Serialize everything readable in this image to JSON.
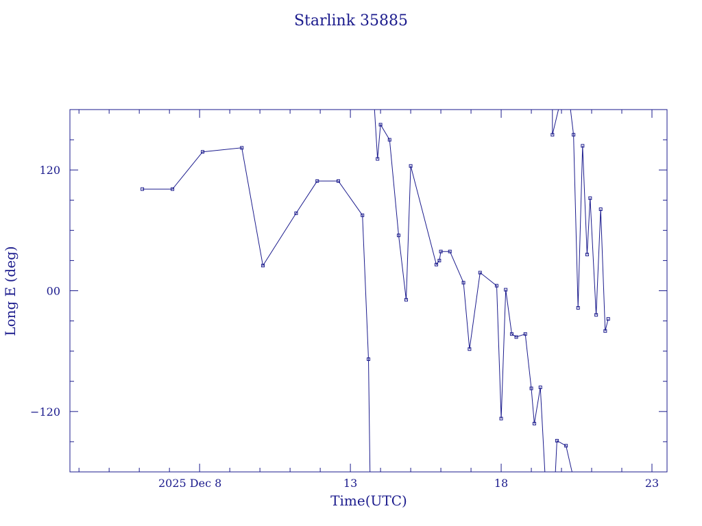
{
  "chart_data": {
    "type": "line",
    "title": "Starlink 35885",
    "xlabel": "Time(UTC)",
    "ylabel": "Long E (deg)",
    "xlim": [
      3.7,
      23.5
    ],
    "ylim": [
      -180,
      180
    ],
    "x_tick_labels": [
      {
        "x": 8,
        "label": "2025 Dec  8"
      },
      {
        "x": 13,
        "label": "13"
      },
      {
        "x": 18,
        "label": "18"
      },
      {
        "x": 23,
        "label": "23"
      }
    ],
    "y_tick_labels": [
      {
        "y": 120,
        "label": "120"
      },
      {
        "y": 0,
        "label": "00"
      },
      {
        "y": -120,
        "label": "−120"
      }
    ],
    "grid": false,
    "legend": "none",
    "color": "#1a1a8c",
    "series": [
      {
        "segments": [
          [
            [
              6.1,
              101
            ],
            [
              7.1,
              101
            ],
            [
              8.1,
              138
            ],
            [
              9.4,
              142
            ],
            [
              10.1,
              25
            ],
            [
              11.2,
              77
            ],
            [
              11.9,
              109
            ],
            [
              12.6,
              109
            ],
            [
              13.4,
              75
            ],
            [
              13.6,
              -68
            ],
            [
              13.65,
              -180
            ]
          ],
          [
            [
              13.8,
              180
            ],
            [
              13.9,
              131
            ],
            [
              14.0,
              165
            ],
            [
              14.3,
              150
            ],
            [
              14.6,
              55
            ],
            [
              14.85,
              -9
            ],
            [
              15.0,
              124
            ],
            [
              15.85,
              26
            ],
            [
              15.95,
              30
            ],
            [
              16.0,
              39
            ],
            [
              16.3,
              39
            ],
            [
              16.75,
              8
            ],
            [
              16.95,
              -58
            ],
            [
              17.3,
              18
            ],
            [
              17.85,
              5
            ],
            [
              18.0,
              -127
            ],
            [
              18.15,
              1
            ],
            [
              18.35,
              -43
            ],
            [
              18.5,
              -46
            ],
            [
              18.8,
              -43
            ],
            [
              19.0,
              -97
            ],
            [
              19.1,
              -132
            ],
            [
              19.3,
              -96
            ],
            [
              19.45,
              -180
            ]
          ],
          [
            [
              19.7,
              180
            ],
            [
              19.7,
              155
            ],
            [
              19.9,
              180
            ]
          ],
          [
            [
              20.3,
              180
            ],
            [
              20.4,
              155
            ],
            [
              20.55,
              -17
            ],
            [
              20.7,
              144
            ],
            [
              20.85,
              36
            ],
            [
              20.95,
              92
            ],
            [
              21.15,
              -24
            ],
            [
              21.3,
              81
            ],
            [
              21.45,
              -40
            ],
            [
              21.55,
              -28
            ]
          ]
        ],
        "points": [
          [
            6.1,
            101
          ],
          [
            7.1,
            101
          ],
          [
            8.1,
            138
          ],
          [
            9.4,
            142
          ],
          [
            10.1,
            25
          ],
          [
            11.2,
            77
          ],
          [
            11.9,
            109
          ],
          [
            12.6,
            109
          ],
          [
            13.4,
            75
          ],
          [
            13.6,
            -68
          ],
          [
            13.9,
            131
          ],
          [
            14.0,
            165
          ],
          [
            14.3,
            150
          ],
          [
            14.6,
            55
          ],
          [
            14.85,
            -9
          ],
          [
            15.0,
            124
          ],
          [
            15.85,
            26
          ],
          [
            15.95,
            30
          ],
          [
            16.0,
            39
          ],
          [
            16.3,
            39
          ],
          [
            16.75,
            8
          ],
          [
            16.95,
            -58
          ],
          [
            17.3,
            18
          ],
          [
            17.85,
            5
          ],
          [
            18.0,
            -127
          ],
          [
            18.15,
            1
          ],
          [
            18.35,
            -43
          ],
          [
            18.5,
            -46
          ],
          [
            18.8,
            -43
          ],
          [
            19.0,
            -97
          ],
          [
            19.1,
            -132
          ],
          [
            19.3,
            -96
          ],
          [
            19.7,
            155
          ],
          [
            20.4,
            155
          ],
          [
            20.55,
            -17
          ],
          [
            20.7,
            144
          ],
          [
            20.85,
            36
          ],
          [
            20.95,
            92
          ],
          [
            21.15,
            -24
          ],
          [
            21.3,
            81
          ],
          [
            21.45,
            -40
          ],
          [
            21.55,
            -28
          ],
          [
            19.85,
            -149
          ],
          [
            20.15,
            -154
          ]
        ],
        "extra_segments": [
          [
            [
              19.8,
              -180
            ],
            [
              19.85,
              -149
            ],
            [
              20.15,
              -154
            ],
            [
              20.35,
              -180
            ]
          ]
        ]
      }
    ]
  }
}
